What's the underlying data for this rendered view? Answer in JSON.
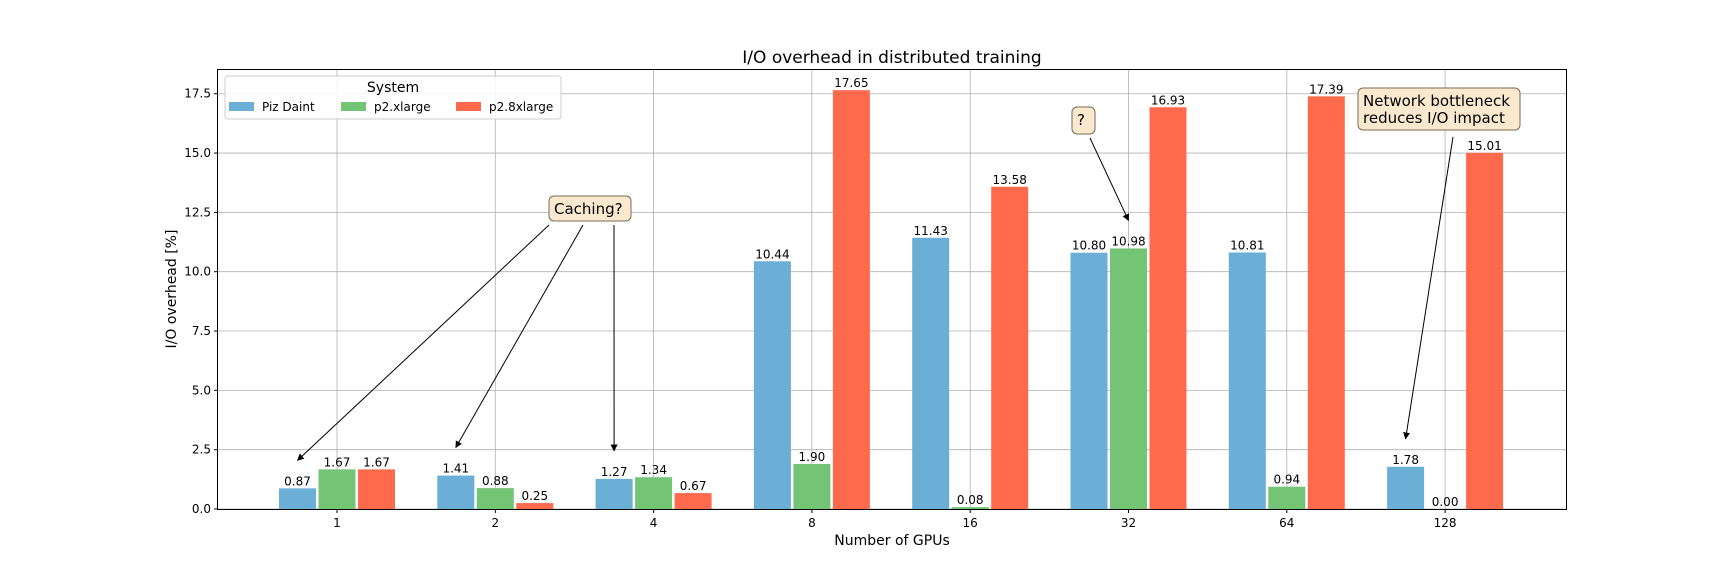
{
  "chart_data": {
    "type": "bar",
    "title": "I/O overhead in distributed training",
    "xlabel": "Number of GPUs",
    "ylabel": "I/O overhead [%]",
    "ylim": [
      0,
      18.5
    ],
    "yticks": [
      0.0,
      2.5,
      5.0,
      7.5,
      10.0,
      12.5,
      15.0,
      17.5
    ],
    "ytick_labels": [
      "0.0",
      "2.5",
      "5.0",
      "7.5",
      "10.0",
      "12.5",
      "15.0",
      "17.5"
    ],
    "categories": [
      "1",
      "2",
      "4",
      "8",
      "16",
      "32",
      "64",
      "128"
    ],
    "series": [
      {
        "name": "Piz Daint",
        "color": "#6baed6",
        "values": [
          0.87,
          1.41,
          1.27,
          10.44,
          11.43,
          10.8,
          10.81,
          1.78
        ],
        "labels": [
          "0.87",
          "1.41",
          "1.27",
          "10.44",
          "11.43",
          "10.80",
          "10.81",
          "1.78"
        ]
      },
      {
        "name": "p2.xlarge",
        "color": "#74c476",
        "values": [
          1.67,
          0.88,
          1.34,
          1.9,
          0.08,
          10.98,
          0.94,
          0.0
        ],
        "labels": [
          "1.67",
          "0.88",
          "1.34",
          "1.90",
          "0.08",
          "10.98",
          "0.94",
          "0.00"
        ]
      },
      {
        "name": "p2.8xlarge",
        "color": "#ff6a4d",
        "values": [
          1.67,
          0.25,
          0.67,
          17.65,
          13.58,
          16.93,
          17.39,
          15.01
        ],
        "labels": [
          "1.67",
          "0.25",
          "0.67",
          "17.65",
          "13.58",
          "16.93",
          "17.39",
          "15.01"
        ]
      }
    ],
    "legend": {
      "title": "System",
      "location": "upper-left"
    },
    "grid": true,
    "annotations": [
      {
        "lines": [
          "Caching?"
        ],
        "targets": [
          [
            0,
            0
          ],
          [
            1,
            0
          ],
          [
            2,
            0
          ]
        ]
      },
      {
        "lines": [
          "?"
        ],
        "targets": [
          [
            5,
            1
          ]
        ]
      },
      {
        "lines": [
          "Network bottleneck",
          "reduces I/O impact"
        ],
        "targets": [
          [
            7,
            0
          ]
        ]
      }
    ]
  }
}
